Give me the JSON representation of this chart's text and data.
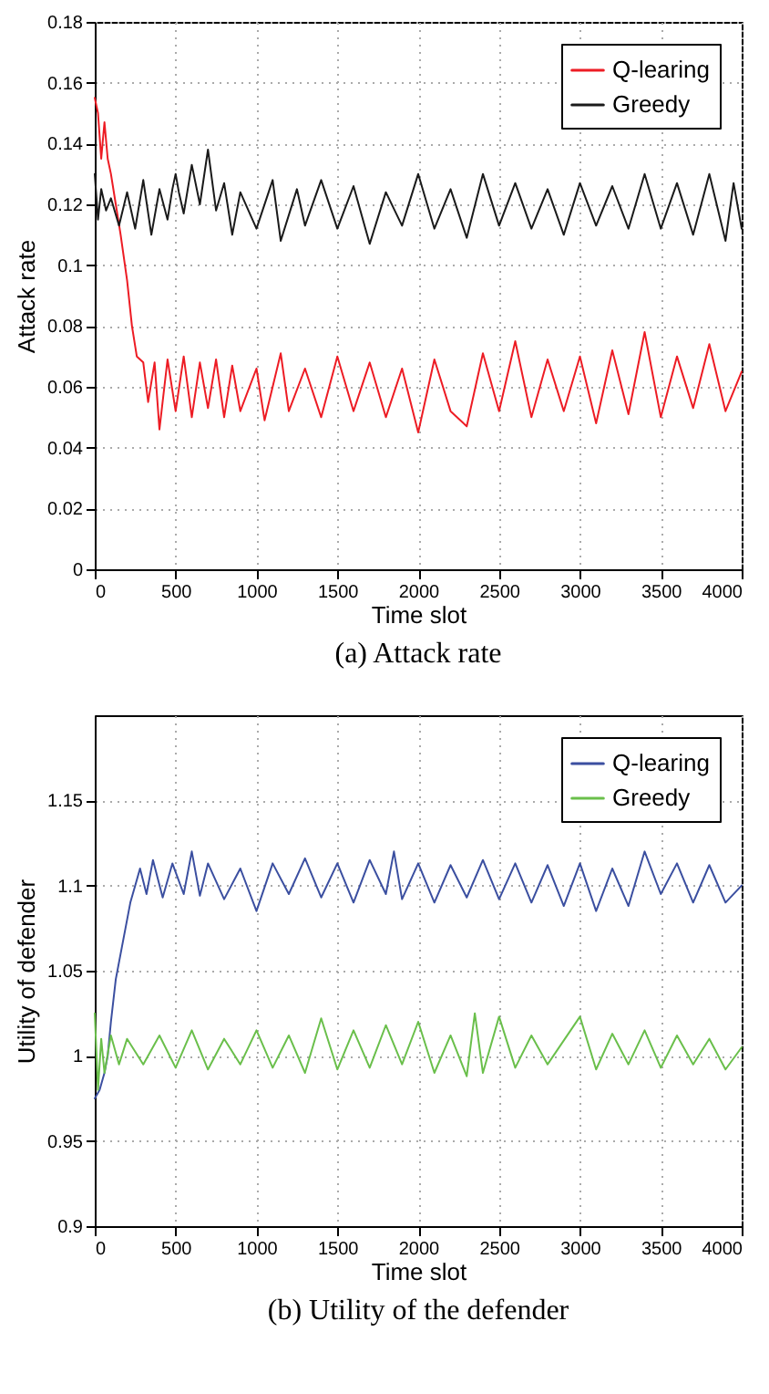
{
  "chart_data": [
    {
      "type": "line",
      "title": "(a) Attack rate",
      "xlabel": "Time slot",
      "ylabel": "Attack rate",
      "xlim": [
        0,
        4000
      ],
      "xticks": [
        0,
        500,
        1000,
        1500,
        2000,
        2500,
        3000,
        3500,
        4000
      ],
      "ylim": [
        0,
        0.18
      ],
      "yticks": [
        0,
        0.02,
        0.04,
        0.06,
        0.08,
        0.1,
        0.12,
        0.14,
        0.16,
        0.18
      ],
      "grid": true,
      "legend": "top right",
      "series": [
        {
          "name": "Q-learing",
          "color": "#ed1c24",
          "x": [
            0,
            20,
            40,
            60,
            80,
            100,
            130,
            160,
            200,
            230,
            260,
            300,
            330,
            370,
            400,
            450,
            500,
            550,
            600,
            650,
            700,
            750,
            800,
            850,
            900,
            1000,
            1050,
            1150,
            1200,
            1300,
            1400,
            1500,
            1600,
            1700,
            1800,
            1900,
            2000,
            2100,
            2200,
            2300,
            2400,
            2500,
            2600,
            2700,
            2800,
            2900,
            3000,
            3100,
            3200,
            3300,
            3400,
            3500,
            3600,
            3700,
            3800,
            3900,
            4000
          ],
          "values": [
            0.155,
            0.15,
            0.135,
            0.147,
            0.135,
            0.13,
            0.12,
            0.11,
            0.095,
            0.08,
            0.07,
            0.068,
            0.055,
            0.068,
            0.046,
            0.069,
            0.052,
            0.07,
            0.05,
            0.068,
            0.053,
            0.069,
            0.05,
            0.067,
            0.052,
            0.066,
            0.049,
            0.071,
            0.052,
            0.066,
            0.05,
            0.07,
            0.052,
            0.068,
            0.05,
            0.066,
            0.045,
            0.069,
            0.052,
            0.047,
            0.071,
            0.052,
            0.075,
            0.05,
            0.069,
            0.052,
            0.07,
            0.048,
            0.072,
            0.051,
            0.078,
            0.05,
            0.07,
            0.053,
            0.074,
            0.052,
            0.065
          ]
        },
        {
          "name": "Greedy",
          "color": "#1a1a1a",
          "x": [
            0,
            20,
            40,
            70,
            100,
            150,
            200,
            250,
            300,
            350,
            400,
            450,
            480,
            500,
            520,
            550,
            600,
            650,
            700,
            750,
            800,
            850,
            900,
            1000,
            1100,
            1150,
            1250,
            1300,
            1400,
            1500,
            1600,
            1700,
            1800,
            1900,
            2000,
            2100,
            2200,
            2300,
            2400,
            2500,
            2600,
            2700,
            2800,
            2900,
            3000,
            3100,
            3200,
            3300,
            3400,
            3500,
            3600,
            3700,
            3800,
            3900,
            3950,
            4000
          ],
          "values": [
            0.13,
            0.115,
            0.125,
            0.118,
            0.122,
            0.113,
            0.124,
            0.112,
            0.128,
            0.11,
            0.125,
            0.115,
            0.125,
            0.13,
            0.124,
            0.117,
            0.133,
            0.12,
            0.138,
            0.118,
            0.127,
            0.11,
            0.124,
            0.112,
            0.128,
            0.108,
            0.125,
            0.113,
            0.128,
            0.112,
            0.126,
            0.107,
            0.124,
            0.113,
            0.13,
            0.112,
            0.125,
            0.109,
            0.13,
            0.113,
            0.127,
            0.112,
            0.125,
            0.11,
            0.127,
            0.113,
            0.126,
            0.112,
            0.13,
            0.112,
            0.127,
            0.11,
            0.13,
            0.108,
            0.127,
            0.112
          ]
        }
      ]
    },
    {
      "type": "line",
      "title": "(b) Utility of the defender",
      "xlabel": "Time slot",
      "ylabel": "Utility of defender",
      "xlim": [
        0,
        4000
      ],
      "xticks": [
        0,
        500,
        1000,
        1500,
        2000,
        2500,
        3000,
        3500,
        4000
      ],
      "ylim": [
        0.9,
        1.2
      ],
      "yticks": [
        0.9,
        0.95,
        1,
        1.05,
        1.1,
        1.15
      ],
      "grid": true,
      "legend": "top right",
      "series": [
        {
          "name": "Q-learing",
          "color": "#3b4fa0",
          "x": [
            0,
            30,
            60,
            80,
            100,
            130,
            160,
            190,
            220,
            250,
            280,
            320,
            360,
            420,
            480,
            550,
            600,
            650,
            700,
            800,
            900,
            1000,
            1100,
            1200,
            1300,
            1400,
            1500,
            1600,
            1700,
            1800,
            1850,
            1900,
            2000,
            2100,
            2200,
            2300,
            2400,
            2500,
            2600,
            2700,
            2800,
            2900,
            3000,
            3100,
            3200,
            3300,
            3400,
            3500,
            3600,
            3700,
            3800,
            3900,
            4000
          ],
          "values": [
            0.975,
            0.98,
            0.99,
            1.0,
            1.02,
            1.045,
            1.06,
            1.075,
            1.09,
            1.1,
            1.11,
            1.095,
            1.115,
            1.093,
            1.113,
            1.095,
            1.12,
            1.094,
            1.113,
            1.092,
            1.11,
            1.085,
            1.113,
            1.095,
            1.116,
            1.093,
            1.113,
            1.09,
            1.115,
            1.095,
            1.12,
            1.092,
            1.113,
            1.09,
            1.112,
            1.093,
            1.115,
            1.092,
            1.113,
            1.09,
            1.112,
            1.088,
            1.113,
            1.085,
            1.11,
            1.088,
            1.12,
            1.095,
            1.113,
            1.09,
            1.112,
            1.09,
            1.1
          ]
        },
        {
          "name": "Greedy",
          "color": "#6abf4b",
          "x": [
            0,
            20,
            40,
            60,
            100,
            150,
            200,
            300,
            400,
            500,
            600,
            700,
            800,
            900,
            1000,
            1100,
            1200,
            1300,
            1400,
            1500,
            1600,
            1700,
            1800,
            1900,
            2000,
            2100,
            2200,
            2300,
            2350,
            2400,
            2500,
            2600,
            2700,
            2800,
            3000,
            3100,
            3200,
            3300,
            3400,
            3500,
            3600,
            3700,
            3800,
            3900,
            4000
          ],
          "values": [
            1.025,
            0.98,
            1.01,
            0.99,
            1.012,
            0.995,
            1.01,
            0.995,
            1.012,
            0.993,
            1.015,
            0.992,
            1.01,
            0.995,
            1.015,
            0.993,
            1.012,
            0.99,
            1.022,
            0.992,
            1.015,
            0.993,
            1.018,
            0.995,
            1.02,
            0.99,
            1.012,
            0.988,
            1.025,
            0.99,
            1.023,
            0.993,
            1.012,
            0.995,
            1.023,
            0.992,
            1.013,
            0.995,
            1.015,
            0.993,
            1.012,
            0.995,
            1.01,
            0.992,
            1.005
          ]
        }
      ]
    }
  ]
}
